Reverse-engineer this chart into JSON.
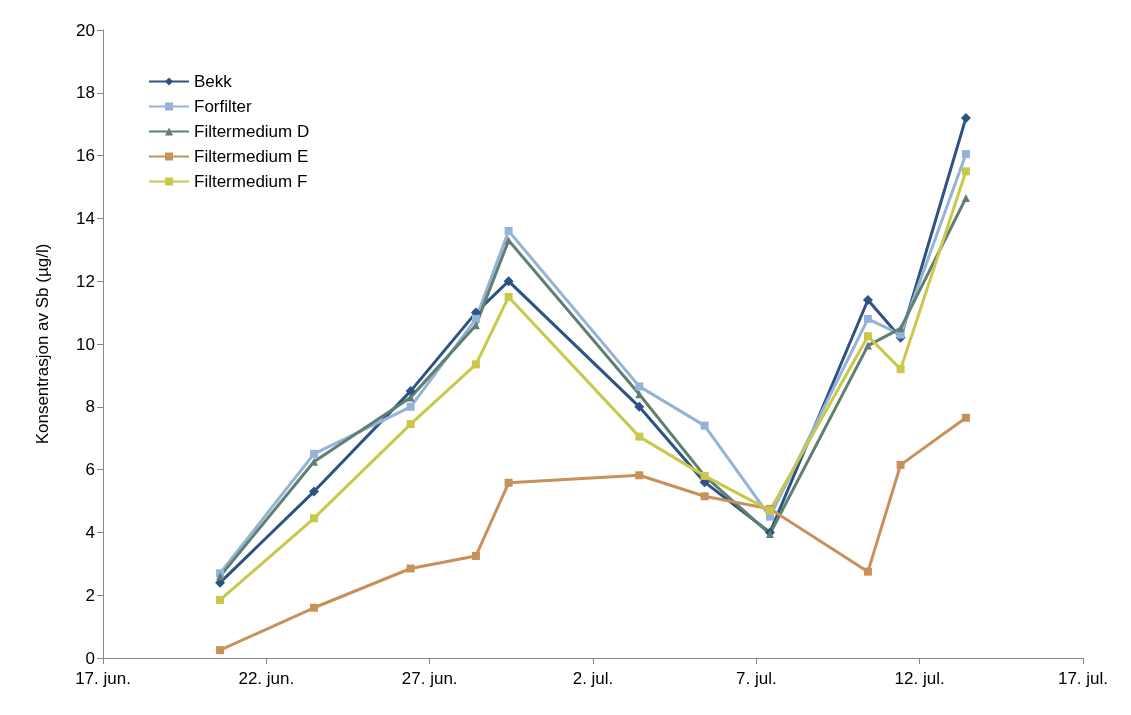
{
  "chart_data": {
    "type": "line",
    "ylabel": "Konsentrasjon av Sb (µg/l)",
    "x": [
      "--06-20T14:00",
      "--06-23T11:00",
      "--06-26T10:00",
      "--06-28T10:00",
      "--06-29T10:00",
      "--07-03T10:00",
      "--07-05T10:00",
      "--07-07T10:00",
      "--07-10T10:00",
      "--07-11T10:00",
      "--07-13T10:00"
    ],
    "series": [
      {
        "name": "Bekk",
        "color": "#2e5282",
        "marker": "diamond",
        "values": [
          2.4,
          5.3,
          8.5,
          11.0,
          12.0,
          8.0,
          5.6,
          4.0,
          11.4,
          10.2,
          17.2
        ]
      },
      {
        "name": "Forfilter",
        "color": "#95b3d7",
        "marker": "square",
        "values": [
          2.7,
          6.5,
          8.0,
          10.8,
          13.6,
          8.65,
          7.4,
          4.5,
          10.8,
          10.3,
          16.05
        ]
      },
      {
        "name": "Filtermedium D",
        "color": "#5f8070",
        "marker": "triangle",
        "values": [
          2.6,
          6.25,
          8.3,
          10.6,
          13.3,
          8.4,
          5.8,
          3.95,
          9.95,
          10.5,
          14.65
        ]
      },
      {
        "name": "Filtermedium E",
        "color": "#c8915a",
        "marker": "square",
        "values": [
          0.25,
          1.6,
          2.85,
          3.25,
          5.58,
          5.82,
          5.15,
          4.75,
          2.75,
          6.15,
          7.65
        ]
      },
      {
        "name": "Filtermedium F",
        "color": "#c9c84a",
        "marker": "square",
        "values": [
          1.85,
          4.45,
          7.45,
          9.35,
          11.5,
          7.05,
          5.8,
          4.7,
          10.25,
          9.2,
          15.5
        ]
      }
    ],
    "xlim": [
      "--06-17",
      "--07-17"
    ],
    "xticks": [
      {
        "value": "--06-17",
        "label": "17. jun."
      },
      {
        "value": "--06-22",
        "label": "22. jun."
      },
      {
        "value": "--06-27",
        "label": "27. jun."
      },
      {
        "value": "--07-02",
        "label": "2. jul."
      },
      {
        "value": "--07-07",
        "label": "7. jul."
      },
      {
        "value": "--07-12",
        "label": "12. jul."
      },
      {
        "value": "--07-17",
        "label": "17. jul."
      }
    ],
    "ylim": [
      0,
      20
    ],
    "yticks": [
      0,
      2,
      4,
      6,
      8,
      10,
      12,
      14,
      16,
      18,
      20
    ],
    "grid": false,
    "legend": "top left",
    "line_style": "solid"
  }
}
